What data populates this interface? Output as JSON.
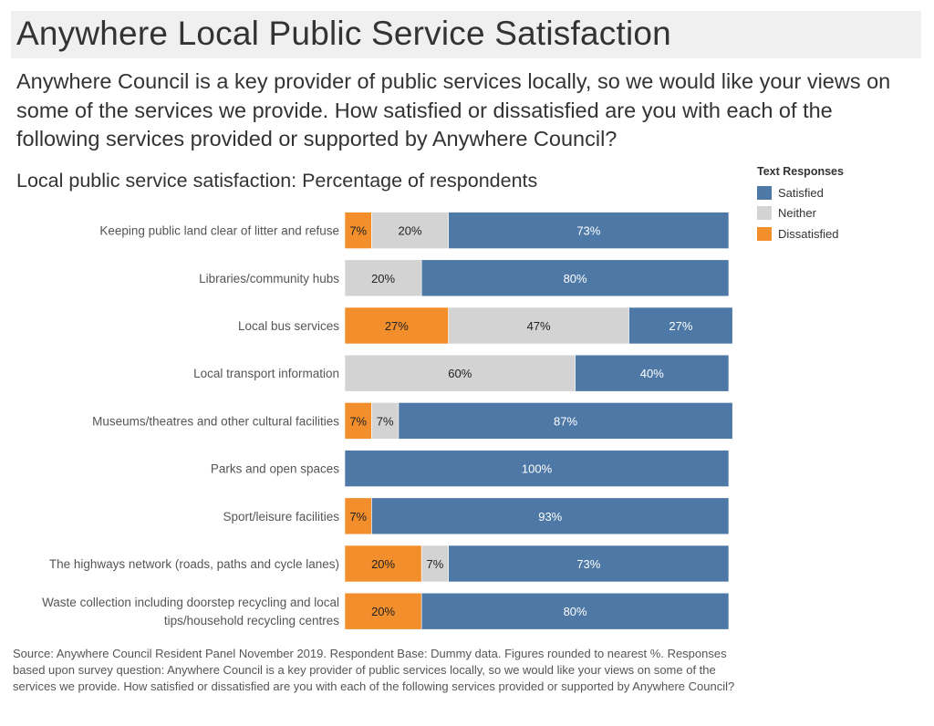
{
  "title": "Anywhere Local Public Service Satisfaction",
  "question": "Anywhere Council is a key provider of public services locally, so we would like your views on some of the services we provide. How satisfied or dissatisfied are you with each of the following services provided or supported by Anywhere Council?",
  "footnote": "Source: Anywhere Council Resident Panel November 2019.  Respondent Base: Dummy data. Figures rounded to nearest %. Responses based upon survey question:  Anywhere Council is a key provider of public services locally, so we would like your views on some of the services we provide. How satisfied or dissatisfied are you with each of the following services provided or supported by Anywhere Council?",
  "legend": {
    "title": "Text Responses",
    "items": [
      {
        "label": "Satisfied",
        "color": "#4e79a7"
      },
      {
        "label": "Neither",
        "color": "#d3d3d3"
      },
      {
        "label": "Dissatisfied",
        "color": "#f28e2b"
      }
    ]
  },
  "chart_data": {
    "type": "bar",
    "orientation": "horizontal",
    "stacked": "100%",
    "title": "Local public service satisfaction: Percentage of respondents",
    "xlabel": "",
    "ylabel": "",
    "xlim": [
      0,
      100
    ],
    "unit": "%",
    "grid": false,
    "legend_position": "top-right",
    "categories": [
      [
        "Keeping public land clear of litter and refuse"
      ],
      [
        "Libraries/community hubs"
      ],
      [
        "Local bus services"
      ],
      [
        "Local transport information"
      ],
      [
        "Museums/theatres and other cultural facilities"
      ],
      [
        "Parks and open spaces"
      ],
      [
        "Sport/leisure facilities"
      ],
      [
        "The highways network (roads, paths and cycle lanes)"
      ],
      [
        "Waste collection including doorstep recycling and local",
        "tips/household recycling centres"
      ]
    ],
    "series": [
      {
        "name": "Dissatisfied",
        "color": "#f28e2b",
        "label_color": "#222222",
        "values": [
          7,
          0,
          27,
          0,
          7,
          0,
          7,
          20,
          20
        ]
      },
      {
        "name": "Neither",
        "color": "#d3d3d3",
        "label_color": "#222222",
        "values": [
          20,
          20,
          47,
          60,
          7,
          0,
          0,
          7,
          0
        ]
      },
      {
        "name": "Satisfied",
        "color": "#4e79a7",
        "label_color": "#ffffff",
        "values": [
          73,
          80,
          27,
          40,
          87,
          100,
          93,
          73,
          80
        ]
      }
    ]
  }
}
